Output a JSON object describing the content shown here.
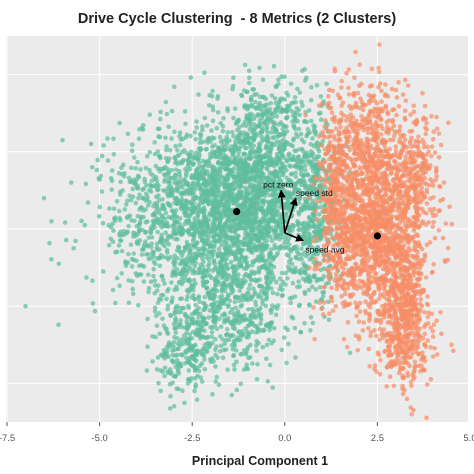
{
  "chart_data": {
    "type": "scatter",
    "title": "Drive Cycle Clustering  - 8 Metrics (2 Clusters)",
    "xlabel": "Principal Component 1",
    "ylabel": "",
    "xlim": [
      -7.5,
      5.0
    ],
    "x_ticks": [
      -7.5,
      -5.0,
      -2.5,
      0.0,
      2.5,
      5.0
    ],
    "x_tick_labels": [
      "-7.5",
      "-5.0",
      "-2.5",
      "0.0",
      "2.5",
      "5.0"
    ],
    "ylim": [
      -5.0,
      5.0
    ],
    "y_ticks": [
      -4,
      -2,
      0,
      2,
      4
    ],
    "grid": true,
    "legend": "none",
    "series": [
      {
        "color": "#5fbe9d",
        "cloud": [
          {
            "x": -1.8,
            "y": 0.6,
            "sx": 1.1,
            "sy": 1.1,
            "n": 1700
          },
          {
            "x": -0.6,
            "y": 1.1,
            "sx": 0.6,
            "sy": 1.1,
            "n": 800
          },
          {
            "x": -1.6,
            "y": -2.0,
            "sx": 0.9,
            "sy": 0.9,
            "n": 650
          },
          {
            "x": -2.7,
            "y": -3.2,
            "sx": 0.35,
            "sy": 0.5,
            "n": 160
          },
          {
            "x": 0.8,
            "y": 0.6,
            "sx": 0.3,
            "sy": 1.2,
            "n": 420
          },
          {
            "x": -3.6,
            "y": 0.3,
            "sx": 1.0,
            "sy": 0.9,
            "n": 220
          },
          {
            "x": -0.2,
            "y": 3.0,
            "sx": 0.6,
            "sy": 0.4,
            "n": 120
          }
        ],
        "outliers": [
          [
            -6.3,
            0.2
          ],
          [
            -6.5,
            0.8
          ],
          [
            -7.0,
            -2.0
          ],
          [
            -6.0,
            2.3
          ],
          [
            -5.7,
            -0.5
          ],
          [
            -5.2,
            1.6
          ],
          [
            -4.9,
            -1.1
          ],
          [
            -5.4,
            0.1
          ],
          [
            -6.1,
            -0.9
          ]
        ]
      },
      {
        "color": "#f78e66",
        "cloud": [
          {
            "x": 2.5,
            "y": 0.0,
            "sx": 0.65,
            "sy": 1.2,
            "n": 1500
          },
          {
            "x": 3.2,
            "y": -2.4,
            "sx": 0.35,
            "sy": 0.9,
            "n": 520
          },
          {
            "x": 2.2,
            "y": 2.5,
            "sx": 0.5,
            "sy": 0.7,
            "n": 280
          },
          {
            "x": 1.4,
            "y": 0.8,
            "sx": 0.25,
            "sy": 1.1,
            "n": 320
          },
          {
            "x": 3.5,
            "y": 1.7,
            "sx": 0.35,
            "sy": 0.7,
            "n": 200
          }
        ],
        "outliers": [
          [
            4.4,
            -0.8
          ],
          [
            4.3,
            1.2
          ],
          [
            4.5,
            -3.0
          ],
          [
            1.2,
            3.6
          ],
          [
            3.0,
            3.6
          ],
          [
            4.1,
            2.9
          ],
          [
            3.3,
            -4.4
          ]
        ]
      }
    ],
    "centroids": [
      {
        "x": -1.3,
        "y": 0.45,
        "color": "#000000"
      },
      {
        "x": 2.5,
        "y": -0.18,
        "color": "#000000"
      }
    ],
    "loadings": {
      "origin": [
        0.0,
        -0.1
      ],
      "color": "#000000",
      "arrows": [
        {
          "label": "pct zero",
          "x": -0.1,
          "y": 1.0
        },
        {
          "label": "speed std",
          "x": 0.3,
          "y": 0.8
        },
        {
          "label": "speed avg",
          "x": 0.5,
          "y": -0.3
        }
      ]
    }
  }
}
